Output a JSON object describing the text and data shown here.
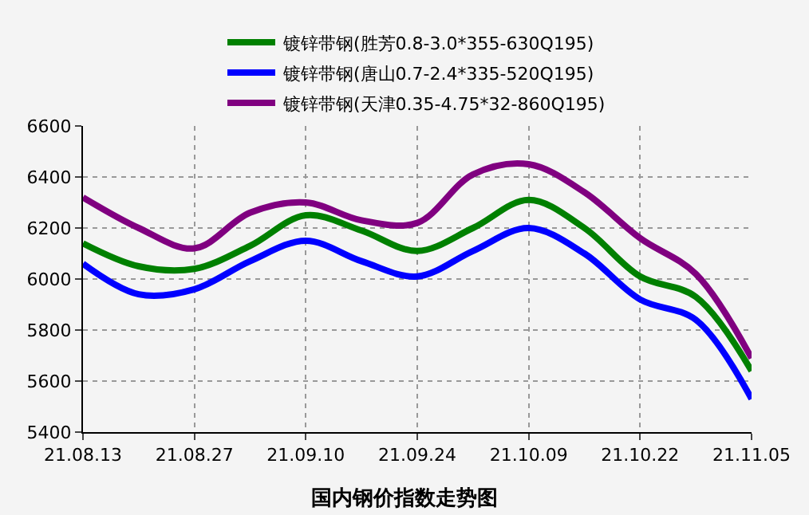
{
  "chart_data": {
    "type": "line",
    "title": "国内钢价指数走势图",
    "categories": [
      "21.08.13",
      null,
      "21.08.27",
      null,
      "21.09.10",
      null,
      "21.09.24",
      null,
      "21.10.09",
      null,
      "21.10.22",
      null,
      "21.11.05"
    ],
    "series": [
      {
        "name": "镀锌带钢(胜芳0.8-3.0*355-630Q195)",
        "color": "#008000",
        "values": [
          6140,
          6050,
          6040,
          6130,
          6250,
          6190,
          6110,
          6200,
          6310,
          6200,
          6010,
          5930,
          5640
        ]
      },
      {
        "name": "镀锌带钢(唐山0.7-2.4*335-520Q195)",
        "color": "#0000ff",
        "values": [
          6060,
          5940,
          5960,
          6070,
          6150,
          6070,
          6010,
          6110,
          6200,
          6100,
          5920,
          5840,
          5530
        ]
      },
      {
        "name": "镀锌带钢(天津0.35-4.75*32-860Q195)",
        "color": "#800080",
        "values": [
          6320,
          6200,
          6120,
          6260,
          6300,
          6230,
          6220,
          6410,
          6450,
          6340,
          6160,
          6020,
          5690
        ]
      }
    ],
    "ylim": [
      5400,
      6600
    ],
    "yticks": [
      5400,
      5600,
      5800,
      6000,
      6200,
      6400,
      6600
    ],
    "grid": true,
    "legend": "top",
    "line_style": "solid",
    "marker": "none"
  }
}
